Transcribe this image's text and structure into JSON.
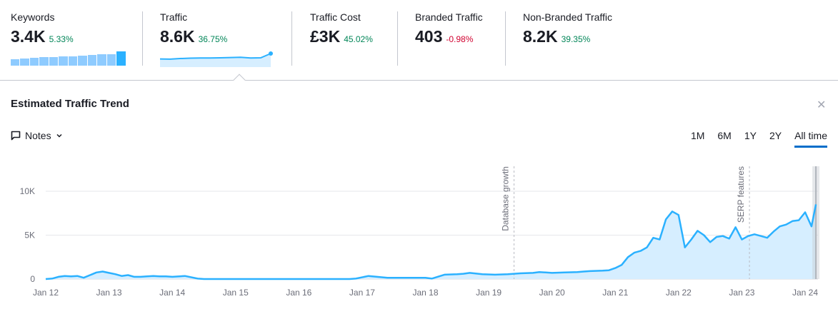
{
  "kpis": [
    {
      "label": "Keywords",
      "value": "3.4K",
      "delta": "5.33%",
      "trend": "pos"
    },
    {
      "label": "Traffic",
      "value": "8.6K",
      "delta": "36.75%",
      "trend": "pos"
    },
    {
      "label": "Traffic Cost",
      "value": "£3K",
      "delta": "45.02%",
      "trend": "pos"
    },
    {
      "label": "Branded Traffic",
      "value": "403",
      "delta": "-0.98%",
      "trend": "neg"
    },
    {
      "label": "Non-Branded Traffic",
      "value": "8.2K",
      "delta": "39.35%",
      "trend": "pos"
    }
  ],
  "keywords_bars": [
    0.45,
    0.5,
    0.55,
    0.58,
    0.62,
    0.66,
    0.66,
    0.7,
    0.76,
    0.82,
    0.82,
    1.0
  ],
  "traffic_spark": [
    0.15,
    0.13,
    0.22,
    0.28,
    0.3,
    0.3,
    0.34,
    0.38,
    0.42,
    0.3,
    0.33,
    1.0
  ],
  "panel": {
    "title": "Estimated Traffic Trend",
    "notes_label": "Notes",
    "close_icon": "close-icon",
    "ranges": [
      "1M",
      "6M",
      "1Y",
      "2Y",
      "All time"
    ],
    "active_range": "All time"
  },
  "colors": {
    "line": "#2bb1ff",
    "fill": "#d6eeff",
    "grid": "#e6e7eb",
    "active": "#006dca"
  },
  "chart_data": {
    "type": "area",
    "title": "Estimated Traffic Trend",
    "xlabel": "",
    "ylabel": "",
    "ylim": [
      0,
      10000
    ],
    "yticks": [
      0,
      5000,
      10000
    ],
    "ytick_labels": [
      "0",
      "5K",
      "10K"
    ],
    "xlim": [
      2012,
      2024.25
    ],
    "xticks": [
      2012,
      2013,
      2014,
      2015,
      2016,
      2017,
      2018,
      2019,
      2020,
      2021,
      2022,
      2023,
      2024
    ],
    "xtick_labels": [
      "Jan 12",
      "Jan 13",
      "Jan 14",
      "Jan 15",
      "Jan 16",
      "Jan 17",
      "Jan 18",
      "Jan 19",
      "Jan 20",
      "Jan 21",
      "Jan 22",
      "Jan 23",
      "Jan 24"
    ],
    "grid": true,
    "annotations": [
      {
        "x": 2019.4,
        "label": "Database growth"
      },
      {
        "x": 2023.12,
        "label": "SERP features"
      }
    ],
    "series": [
      {
        "name": "Traffic",
        "x": [
          2012.0,
          2012.1,
          2012.2,
          2012.3,
          2012.4,
          2012.5,
          2012.6,
          2012.7,
          2012.8,
          2012.9,
          2013.0,
          2013.1,
          2013.2,
          2013.3,
          2013.4,
          2013.5,
          2013.6,
          2013.7,
          2013.8,
          2013.9,
          2014.0,
          2014.2,
          2014.4,
          2014.5,
          2014.6,
          2014.7,
          2014.8,
          2014.9,
          2015.0,
          2015.3,
          2015.6,
          2015.9,
          2016.2,
          2016.5,
          2016.7,
          2016.8,
          2016.9,
          2017.1,
          2017.4,
          2017.7,
          2017.9,
          2018.0,
          2018.1,
          2018.3,
          2018.5,
          2018.6,
          2018.7,
          2018.9,
          2019.1,
          2019.3,
          2019.5,
          2019.7,
          2019.8,
          2020.0,
          2020.2,
          2020.4,
          2020.5,
          2020.6,
          2020.8,
          2020.9,
          2021.0,
          2021.1,
          2021.2,
          2021.3,
          2021.4,
          2021.5,
          2021.6,
          2021.7,
          2021.8,
          2021.9,
          2022.0,
          2022.1,
          2022.2,
          2022.3,
          2022.4,
          2022.5,
          2022.6,
          2022.7,
          2022.8,
          2022.9,
          2023.0,
          2023.1,
          2023.2,
          2023.3,
          2023.4,
          2023.5,
          2023.6,
          2023.7,
          2023.8,
          2023.9,
          2024.0,
          2024.1,
          2024.17
        ],
        "y": [
          0,
          50,
          250,
          350,
          300,
          350,
          150,
          450,
          750,
          850,
          700,
          550,
          350,
          450,
          250,
          250,
          300,
          350,
          300,
          300,
          250,
          350,
          50,
          0,
          0,
          0,
          -20,
          0,
          0,
          0,
          0,
          0,
          0,
          0,
          0,
          0,
          50,
          350,
          150,
          150,
          150,
          150,
          50,
          500,
          550,
          600,
          700,
          550,
          500,
          550,
          650,
          700,
          800,
          700,
          750,
          800,
          850,
          900,
          950,
          1000,
          1250,
          1600,
          2500,
          3000,
          3200,
          3600,
          4700,
          4500,
          6800,
          7700,
          7300,
          3600,
          4500,
          5500,
          5000,
          4200,
          4800,
          4900,
          4600,
          5900,
          4500,
          4900,
          5100,
          4900,
          4700,
          5400,
          6000,
          6200,
          6600,
          6700,
          7600,
          6000,
          8500
        ]
      }
    ]
  }
}
